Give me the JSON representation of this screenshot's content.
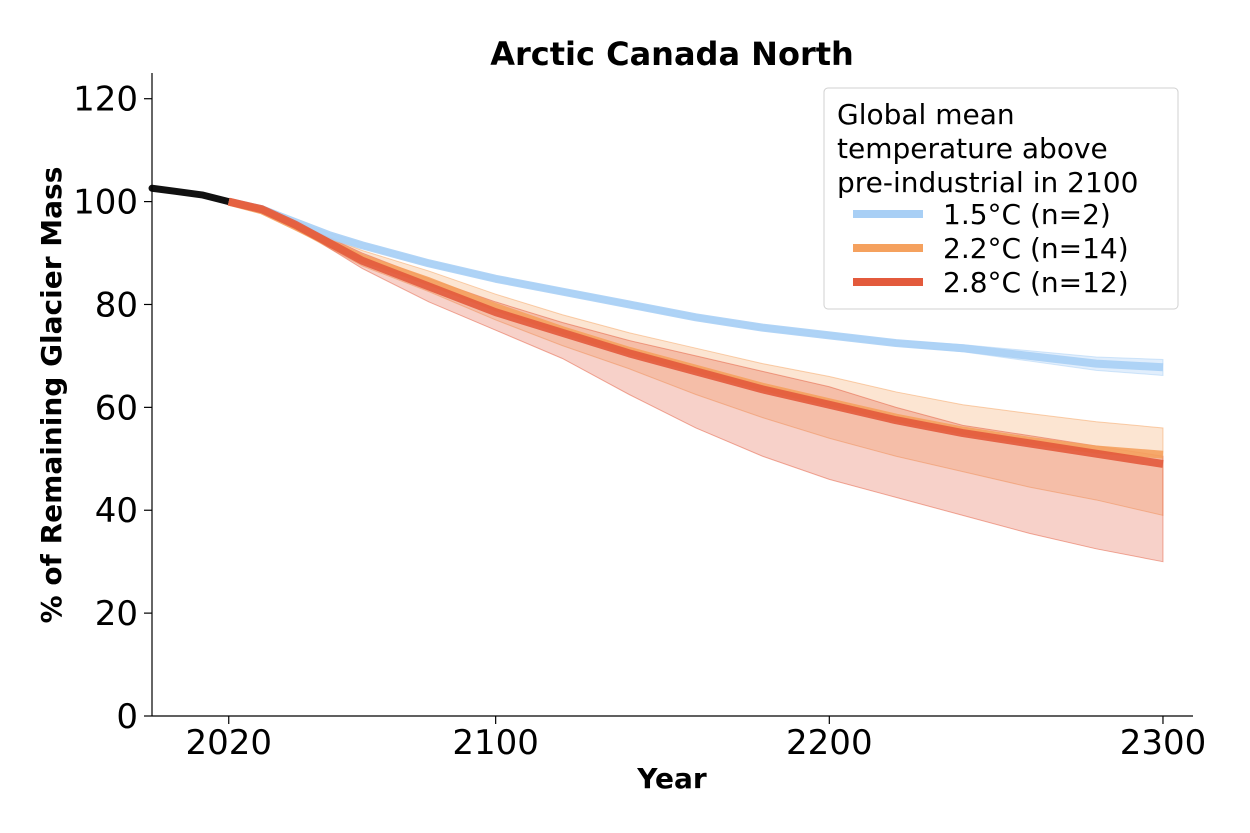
{
  "chart_data": {
    "type": "line",
    "title": "Arctic Canada North",
    "xlabel": "Year",
    "ylabel": "% of Remaining Glacier Mass",
    "xlim": [
      1997,
      2309
    ],
    "ylim": [
      0,
      125
    ],
    "xticks": [
      2020,
      2100,
      2200,
      2300
    ],
    "yticks": [
      0,
      20,
      40,
      60,
      80,
      100,
      120
    ],
    "grid": false,
    "legend": {
      "title": "Global mean\ntemperature above\npre-industrial in 2100",
      "placement": "top-right"
    },
    "history": {
      "color": "#111111",
      "x": [
        1997,
        2004,
        2012,
        2020
      ],
      "y": [
        102.6,
        102.0,
        101.3,
        100.0
      ]
    },
    "series": [
      {
        "name": "1.5°C (n=2)",
        "color": "#a8cff5",
        "x": [
          2020,
          2030,
          2040,
          2050,
          2060,
          2080,
          2100,
          2120,
          2140,
          2160,
          2180,
          2200,
          2220,
          2240,
          2260,
          2280,
          2300
        ],
        "y": [
          100.0,
          98.5,
          96.0,
          93.5,
          91.5,
          88.0,
          85.0,
          82.5,
          80.0,
          77.5,
          75.5,
          74.0,
          72.5,
          71.5,
          70.0,
          68.5,
          67.8
        ],
        "lower": [
          100.0,
          98.3,
          95.7,
          93.1,
          91.0,
          87.5,
          84.5,
          82.0,
          79.5,
          77.0,
          75.0,
          73.5,
          72.0,
          70.8,
          69.0,
          67.2,
          66.2
        ],
        "upper": [
          100.0,
          98.7,
          96.3,
          93.9,
          92.0,
          88.5,
          85.5,
          83.0,
          80.5,
          78.0,
          76.0,
          74.5,
          73.0,
          72.2,
          71.0,
          69.8,
          69.3
        ]
      },
      {
        "name": "2.2°C (n=14)",
        "color": "#f5a15e",
        "x": [
          2020,
          2030,
          2040,
          2050,
          2060,
          2080,
          2100,
          2120,
          2140,
          2160,
          2180,
          2200,
          2220,
          2240,
          2260,
          2280,
          2300
        ],
        "y": [
          100.0,
          98.3,
          95.2,
          92.0,
          89.0,
          84.5,
          79.5,
          75.0,
          71.0,
          67.5,
          64.0,
          61.0,
          58.0,
          55.5,
          53.5,
          51.8,
          50.8
        ],
        "lower": [
          100.0,
          98.0,
          94.6,
          91.0,
          87.5,
          82.5,
          77.0,
          72.0,
          67.5,
          62.5,
          58.0,
          54.0,
          50.5,
          47.5,
          44.5,
          42.0,
          39.0
        ],
        "upper": [
          100.0,
          98.6,
          95.8,
          93.0,
          90.5,
          86.5,
          82.0,
          78.0,
          74.5,
          71.5,
          68.5,
          66.0,
          63.0,
          60.5,
          58.8,
          57.2,
          56.0
        ]
      },
      {
        "name": "2.8°C (n=12)",
        "color": "#e35a3c",
        "x": [
          2020,
          2030,
          2040,
          2050,
          2060,
          2080,
          2100,
          2120,
          2140,
          2160,
          2180,
          2200,
          2220,
          2240,
          2260,
          2280,
          2300
        ],
        "y": [
          100.0,
          98.5,
          95.5,
          92.0,
          88.5,
          83.5,
          78.5,
          74.5,
          70.5,
          67.0,
          63.5,
          60.5,
          57.5,
          55.0,
          53.0,
          51.0,
          49.0
        ],
        "lower": [
          100.0,
          98.2,
          95.0,
          91.0,
          87.0,
          80.5,
          75.0,
          69.5,
          62.5,
          56.0,
          50.5,
          46.0,
          42.5,
          39.0,
          35.5,
          32.5,
          30.0
        ],
        "upper": [
          100.0,
          98.8,
          96.0,
          93.0,
          90.0,
          85.0,
          80.5,
          76.5,
          73.0,
          70.0,
          67.0,
          64.0,
          60.0,
          56.5,
          54.5,
          52.5,
          50.5
        ]
      }
    ]
  }
}
